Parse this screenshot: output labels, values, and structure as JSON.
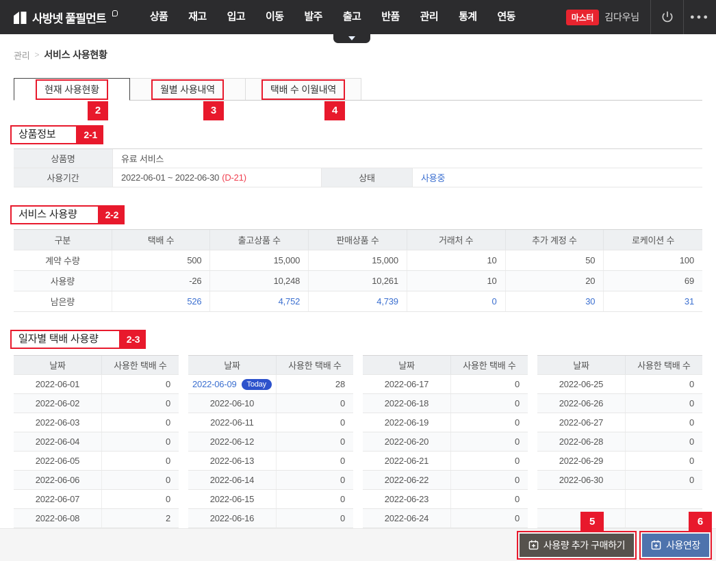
{
  "nav": {
    "logo_text": "사방넷 풀필먼트",
    "items": [
      "상품",
      "재고",
      "입고",
      "이동",
      "발주",
      "출고",
      "반품",
      "관리",
      "통계",
      "연동"
    ],
    "dropdown_under": "출고",
    "role_badge": "마스터",
    "user_name": "김다우님"
  },
  "breadcrumb": {
    "parent": "관리",
    "separator": ">",
    "current": "서비스 사용현황"
  },
  "tabs": [
    {
      "label": "현재 사용현황",
      "annotation": "2",
      "active": true
    },
    {
      "label": "월별 사용내역",
      "annotation": "3",
      "active": false
    },
    {
      "label": "택배 수 이월내역",
      "annotation": "4",
      "active": false
    }
  ],
  "product_info": {
    "title": "상품정보",
    "annotation": "2-1",
    "name_label": "상품명",
    "name_value": "유료 서비스",
    "period_label": "사용기간",
    "period_value": "2022-06-01 ~ 2022-06-30",
    "period_dday": "(D-21)",
    "status_label": "상태",
    "status_value": "사용중"
  },
  "service_usage": {
    "title": "서비스 사용량",
    "annotation": "2-2",
    "columns": [
      "구분",
      "택배 수",
      "출고상품 수",
      "판매상품 수",
      "거래처 수",
      "추가 계정 수",
      "로케이션 수"
    ],
    "rows": [
      {
        "label": "계약 수량",
        "values": [
          "500",
          "15,000",
          "15,000",
          "10",
          "50",
          "100"
        ],
        "link": false
      },
      {
        "label": "사용량",
        "values": [
          "-26",
          "10,248",
          "10,261",
          "10",
          "20",
          "69"
        ],
        "link": false
      },
      {
        "label": "남은량",
        "values": [
          "526",
          "4,752",
          "4,739",
          "0",
          "30",
          "31"
        ],
        "link": true
      }
    ]
  },
  "daily_usage": {
    "title": "일자별 택배 사용량",
    "annotation": "2-3",
    "date_header": "날짜",
    "count_header": "사용한 택배 수",
    "today_label": "Today",
    "tables": [
      {
        "rows": [
          {
            "date": "2022-06-01",
            "count": "0",
            "today": false
          },
          {
            "date": "2022-06-02",
            "count": "0",
            "today": false
          },
          {
            "date": "2022-06-03",
            "count": "0",
            "today": false
          },
          {
            "date": "2022-06-04",
            "count": "0",
            "today": false
          },
          {
            "date": "2022-06-05",
            "count": "0",
            "today": false
          },
          {
            "date": "2022-06-06",
            "count": "0",
            "today": false
          },
          {
            "date": "2022-06-07",
            "count": "0",
            "today": false
          },
          {
            "date": "2022-06-08",
            "count": "2",
            "today": false
          }
        ]
      },
      {
        "rows": [
          {
            "date": "2022-06-09",
            "count": "28",
            "today": true
          },
          {
            "date": "2022-06-10",
            "count": "0",
            "today": false
          },
          {
            "date": "2022-06-11",
            "count": "0",
            "today": false
          },
          {
            "date": "2022-06-12",
            "count": "0",
            "today": false
          },
          {
            "date": "2022-06-13",
            "count": "0",
            "today": false
          },
          {
            "date": "2022-06-14",
            "count": "0",
            "today": false
          },
          {
            "date": "2022-06-15",
            "count": "0",
            "today": false
          },
          {
            "date": "2022-06-16",
            "count": "0",
            "today": false
          }
        ]
      },
      {
        "rows": [
          {
            "date": "2022-06-17",
            "count": "0",
            "today": false
          },
          {
            "date": "2022-06-18",
            "count": "0",
            "today": false
          },
          {
            "date": "2022-06-19",
            "count": "0",
            "today": false
          },
          {
            "date": "2022-06-20",
            "count": "0",
            "today": false
          },
          {
            "date": "2022-06-21",
            "count": "0",
            "today": false
          },
          {
            "date": "2022-06-22",
            "count": "0",
            "today": false
          },
          {
            "date": "2022-06-23",
            "count": "0",
            "today": false
          },
          {
            "date": "2022-06-24",
            "count": "0",
            "today": false
          }
        ]
      },
      {
        "rows": [
          {
            "date": "2022-06-25",
            "count": "0",
            "today": false
          },
          {
            "date": "2022-06-26",
            "count": "0",
            "today": false
          },
          {
            "date": "2022-06-27",
            "count": "0",
            "today": false
          },
          {
            "date": "2022-06-28",
            "count": "0",
            "today": false
          },
          {
            "date": "2022-06-29",
            "count": "0",
            "today": false
          },
          {
            "date": "2022-06-30",
            "count": "0",
            "today": false
          },
          {
            "date": "",
            "count": "",
            "today": false
          },
          {
            "date": "",
            "count": "",
            "today": false
          }
        ]
      }
    ]
  },
  "footer": {
    "purchase_label": "사용량 추가 구매하기",
    "purchase_annotation": "5",
    "extend_label": "사용연장",
    "extend_annotation": "6"
  },
  "colors": {
    "nav_bg": "#2c2c2e",
    "annotation_red": "#e8192c",
    "role_badge_red": "#e8242f",
    "link_blue": "#3b6fd0",
    "today_badge_blue": "#2d52cc",
    "dday_red": "#f03e4e",
    "button_dark": "#56524d",
    "button_blue": "#4e73ad",
    "header_cell_bg": "#eef0f2",
    "footer_bg": "#f5f5f5"
  }
}
